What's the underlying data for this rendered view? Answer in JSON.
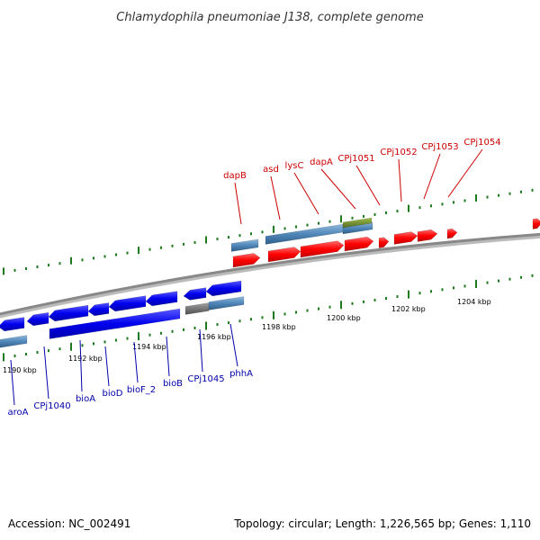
{
  "title": "Chlamydophila pneumoniae J138, complete genome",
  "footer": {
    "accession": "Accession: NC_002491",
    "summary": "Topology: circular; Length: 1,226,565 bp; Genes: 1,110"
  },
  "colors": {
    "forward_gene": "#ff0000",
    "reverse_gene": "#0000ee",
    "forward_label": "#cc0000",
    "reverse_label": "#0000aa",
    "cds_bar": "#4f86b8",
    "misc_bar": "#6b8e23",
    "gray_bar": "#707070",
    "tick": "#1e7a1e",
    "backbone": "#888888"
  },
  "ticks": [
    {
      "label": "1190 kbp"
    },
    {
      "label": "1192 kbp"
    },
    {
      "label": "1194 kbp"
    },
    {
      "label": "1196 kbp"
    },
    {
      "label": "1198 kbp"
    },
    {
      "label": "1200 kbp"
    },
    {
      "label": "1202 kbp"
    },
    {
      "label": "1204 kbp"
    }
  ],
  "forward_genes": [
    {
      "name": "dapB"
    },
    {
      "name": "asd"
    },
    {
      "name": "lysC"
    },
    {
      "name": "dapA"
    },
    {
      "name": "CPj1051"
    },
    {
      "name": "CPj1052"
    },
    {
      "name": "CPj1053"
    },
    {
      "name": "CPj1054"
    }
  ],
  "reverse_genes": [
    {
      "name": "aroA"
    },
    {
      "name": "CPj1040"
    },
    {
      "name": "bioA"
    },
    {
      "name": "bioD"
    },
    {
      "name": "bioF_2"
    },
    {
      "name": "bioB"
    },
    {
      "name": "CPj1045"
    },
    {
      "name": "phhA"
    }
  ]
}
